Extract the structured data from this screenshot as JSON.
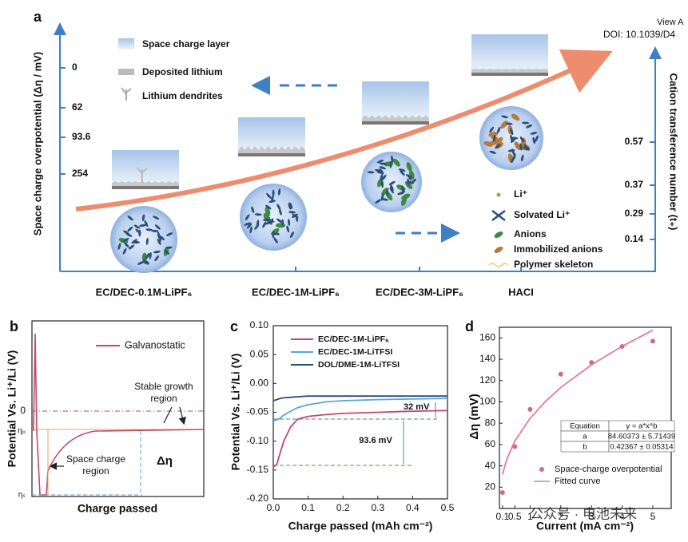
{
  "header": {
    "view": "View A",
    "doi": "DOI: 10.1039/D4"
  },
  "panel_a": {
    "label": "a",
    "left_axis_title": "Space charge overpotential (Δη / mV)",
    "left_ticks": [
      "0",
      "62",
      "93.6",
      "254"
    ],
    "right_axis_title": "Cation transference number (t₊)",
    "right_ticks": [
      "0.57",
      "0.37",
      "0.29",
      "0.14"
    ],
    "categories": [
      "EC/DEC-0.1M-LiPF₆",
      "EC/DEC-1M-LiPF₆",
      "EC/DEC-3M-LiPF₆",
      "HACI"
    ],
    "legend_top": [
      "Space charge layer",
      "Deposited lithium",
      "Lithium dendrites"
    ],
    "legend_bottom": [
      "Li⁺",
      "Solvated Li⁺",
      "Anions",
      "Immobilized anions",
      "Polymer skeleton"
    ]
  },
  "panel_b": {
    "label": "b",
    "legend": "Galvanostatic",
    "stable_region": [
      "Stable growth",
      "region"
    ],
    "space_charge_region": [
      "Space charge",
      "region"
    ],
    "delta": "Δη",
    "zero": "0",
    "eta_p": "ηₚ",
    "eta_s": "ηₛ",
    "y_title": "Potential Vs. Li⁺/Li (V)",
    "x_title": "Charge passed"
  },
  "chart_data": [
    {
      "type": "line",
      "label": "c",
      "y_title": "Potential Vs. Li⁺/Li (V)",
      "x_title": "Charge passed (mAh cm⁻²)",
      "x": [
        0,
        0.01,
        0.02,
        0.03,
        0.05,
        0.07,
        0.1,
        0.15,
        0.2,
        0.3,
        0.4,
        0.5
      ],
      "series": [
        {
          "name": "EC/DEC-1M-LiPF₆",
          "color": "#c2496e",
          "values": [
            -0.145,
            -0.14,
            -0.12,
            -0.1,
            -0.075,
            -0.062,
            -0.057,
            -0.054,
            -0.052,
            -0.05,
            -0.048,
            -0.047
          ]
        },
        {
          "name": "EC/DEC-1M-LiTFSI",
          "color": "#5ea3d8",
          "values": [
            -0.065,
            -0.063,
            -0.06,
            -0.055,
            -0.048,
            -0.042,
            -0.037,
            -0.032,
            -0.03,
            -0.028,
            -0.027,
            -0.026
          ]
        },
        {
          "name": "DOL/DME-1M-LiTFSI",
          "color": "#2c4f78",
          "values": [
            -0.03,
            -0.028,
            -0.026,
            -0.025,
            -0.024,
            -0.023,
            -0.022,
            -0.022,
            -0.022,
            -0.022,
            -0.022,
            -0.022
          ]
        }
      ],
      "xlim": [
        0,
        0.5
      ],
      "ylim": [
        -0.2,
        0.1
      ],
      "xticks": [
        {
          "value": 0,
          "label": "0.0"
        },
        0.1,
        0.2,
        0.3,
        0.4,
        0.5
      ],
      "yticks": [
        {
          "value": 0.1,
          "label": "0.10"
        },
        {
          "value": 0.05,
          "label": "0.05"
        },
        {
          "value": 0,
          "label": "0.00"
        },
        {
          "value": -0.05,
          "label": "-0.05"
        },
        {
          "value": -0.1,
          "label": "-0.10"
        },
        {
          "value": -0.15,
          "label": "-0.15"
        },
        {
          "value": -0.2,
          "label": "-0.20"
        }
      ],
      "annotations": [
        "32 mV",
        "93.6 mV"
      ]
    },
    {
      "type": "scatter",
      "label": "d",
      "y_title": "Δη (mV)",
      "x_title": "Current (mA cm⁻²)",
      "series": [
        {
          "name": "Space-charge overpotential",
          "color": "#d16a86",
          "x": [
            0.1,
            0.5,
            1,
            2,
            3,
            4,
            5
          ],
          "values": [
            15,
            58,
            93,
            126,
            137,
            152,
            157
          ]
        },
        {
          "name": "Fitted curve",
          "color": "#e87a98",
          "x": [
            0.1,
            0.25,
            0.5,
            1,
            1.5,
            2,
            3,
            4,
            5
          ],
          "values": [
            31.9,
            47.0,
            63.1,
            84.6,
            100.4,
            113.5,
            134.8,
            152.2,
            167.3
          ]
        }
      ],
      "xlim": [
        0,
        5.6
      ],
      "ylim": [
        0,
        170
      ],
      "xticks": [
        0.1,
        0.5,
        1,
        2,
        3,
        4,
        5
      ],
      "yticks": [
        20,
        40,
        60,
        80,
        100,
        120,
        140,
        160
      ],
      "table": [
        [
          "Equation",
          "y = a*x^b"
        ],
        [
          "a",
          "84.60373 ± 5.71439"
        ],
        [
          "b",
          "0.42367 ± 0.05314"
        ]
      ],
      "watermark": "公众号 · 电池未来"
    }
  ]
}
